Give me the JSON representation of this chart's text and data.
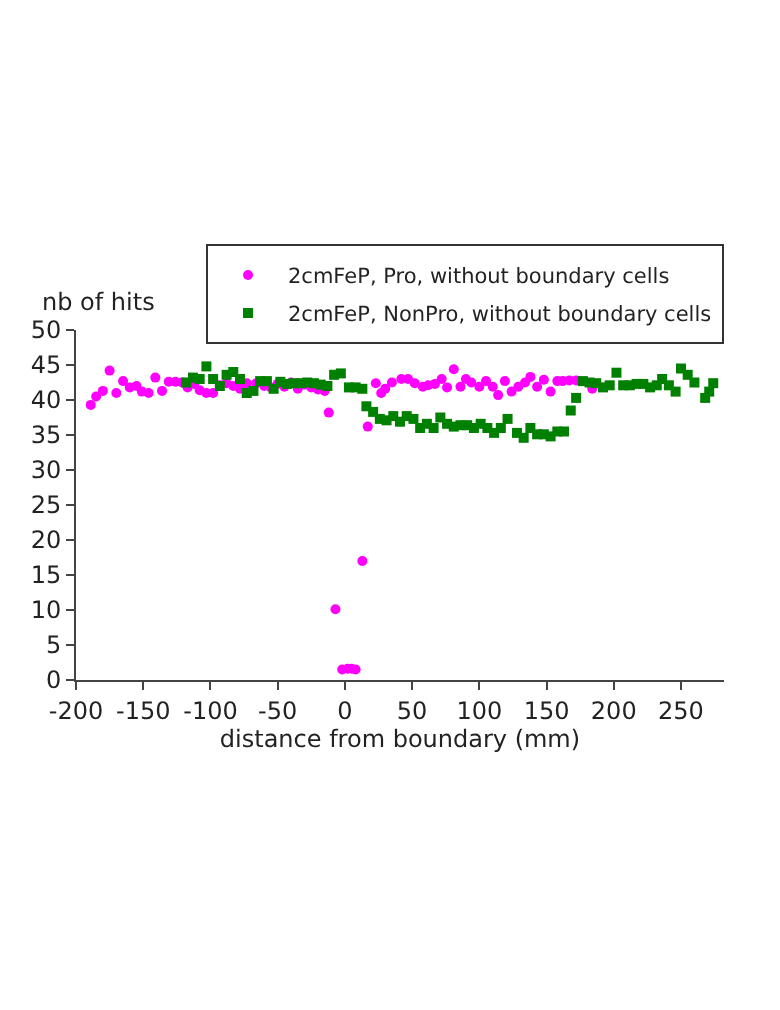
{
  "chart_data": {
    "type": "scatter",
    "xlabel": "distance from boundary (mm)",
    "ylabel": "nb of hits",
    "xlim": [
      -200,
      282
    ],
    "ylim": [
      0,
      50
    ],
    "xticks": [
      -200,
      -150,
      -100,
      -50,
      0,
      50,
      100,
      150,
      200,
      250
    ],
    "yticks": [
      0,
      5,
      10,
      15,
      20,
      25,
      30,
      35,
      40,
      45,
      50
    ],
    "legend": "top right",
    "series": [
      {
        "name": "2cmFeP, Pro, without boundary cells",
        "color": "#ff00ff",
        "marker": "circle",
        "x": [
          -189,
          -185,
          -180,
          -175,
          -170,
          -165,
          -160,
          -155,
          -151,
          -146,
          -141,
          -136,
          -131,
          -126,
          -121,
          -117,
          -112,
          -108,
          -103,
          -98,
          -93,
          -88,
          -83,
          -78,
          -73,
          -66,
          -60,
          -55,
          -50,
          -45,
          -40,
          -35,
          -30,
          -25,
          -20,
          -15,
          -12,
          -7,
          -2,
          2,
          5,
          8,
          13,
          17,
          23,
          27,
          30,
          35,
          42,
          47,
          52,
          58,
          62,
          67,
          72,
          76,
          81,
          86,
          90,
          94,
          100,
          105,
          110,
          114,
          119,
          124,
          129,
          134,
          138,
          143,
          148,
          153,
          158,
          162,
          167,
          172,
          184
        ],
        "values": [
          39.3,
          40.5,
          41.3,
          44.2,
          41.0,
          42.7,
          41.8,
          42.0,
          41.2,
          41.0,
          43.2,
          41.3,
          42.6,
          42.6,
          42.5,
          41.8,
          42.3,
          41.4,
          41.0,
          41.0,
          42.1,
          42.4,
          42.0,
          41.6,
          42.4,
          42.4,
          42.0,
          41.8,
          42.3,
          41.9,
          42.5,
          41.6,
          42.2,
          41.8,
          41.5,
          41.3,
          38.2,
          10.1,
          1.5,
          1.6,
          1.6,
          1.5,
          17.0,
          36.2,
          42.4,
          41.0,
          41.6,
          42.5,
          43.0,
          43.0,
          42.4,
          41.9,
          42.1,
          42.3,
          43.0,
          41.8,
          44.4,
          41.9,
          43.0,
          42.5,
          41.9,
          42.7,
          41.9,
          40.7,
          42.7,
          41.2,
          41.9,
          42.5,
          43.3,
          41.9,
          42.9,
          41.2,
          42.7,
          42.7,
          42.8,
          42.8,
          41.6
        ]
      },
      {
        "name": "2cmFeP, NonPro, without boundary cells",
        "color": "#008000",
        "marker": "square",
        "x": [
          -118,
          -113,
          -108,
          -103,
          -98,
          -93,
          -88,
          -83,
          -78,
          -73,
          -68,
          -63,
          -58,
          -53,
          -48,
          -43,
          -38,
          -33,
          -28,
          -23,
          -18,
          -13,
          -8,
          -3,
          3,
          8,
          13,
          16,
          21,
          26,
          31,
          36,
          41,
          46,
          51,
          56,
          61,
          66,
          71,
          76,
          81,
          86,
          91,
          96,
          101,
          106,
          111,
          116,
          121,
          128,
          133,
          138,
          143,
          148,
          153,
          158,
          163,
          168,
          172,
          177,
          182,
          187,
          192,
          197,
          202,
          207,
          212,
          217,
          222,
          227,
          232,
          236,
          241,
          246,
          250,
          255,
          260,
          268,
          271,
          274
        ],
        "values": [
          42.5,
          43.2,
          43.0,
          44.8,
          43.0,
          42.0,
          43.6,
          44.0,
          43.0,
          41.0,
          41.3,
          42.7,
          42.7,
          41.6,
          42.6,
          42.3,
          42.4,
          42.4,
          42.5,
          42.4,
          42.2,
          42.0,
          43.6,
          43.8,
          41.8,
          41.8,
          41.6,
          39.1,
          38.3,
          37.3,
          37.1,
          37.7,
          36.9,
          37.7,
          37.3,
          36.0,
          36.6,
          36.0,
          37.5,
          36.6,
          36.2,
          36.4,
          36.4,
          36.0,
          36.6,
          36.0,
          35.3,
          36.0,
          37.3,
          35.3,
          34.6,
          36.0,
          35.1,
          35.1,
          34.8,
          35.5,
          35.5,
          38.5,
          40.3,
          42.7,
          42.5,
          42.4,
          41.8,
          42.1,
          43.9,
          42.1,
          42.1,
          42.3,
          42.3,
          41.8,
          42.1,
          43.0,
          42.1,
          41.2,
          44.5,
          43.6,
          42.5,
          40.3,
          41.2,
          42.4
        ]
      }
    ]
  }
}
